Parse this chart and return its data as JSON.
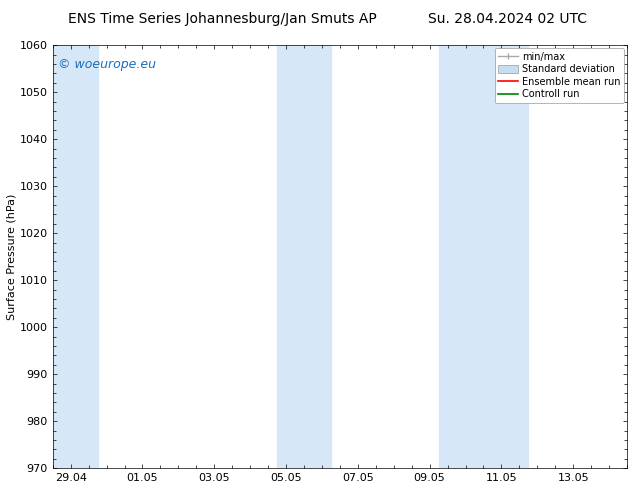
{
  "title_left": "ENS Time Series Johannesburg/Jan Smuts AP",
  "title_right": "Su. 28.04.2024 02 UTC",
  "ylabel": "Surface Pressure (hPa)",
  "ylim": [
    970,
    1060
  ],
  "yticks": [
    970,
    980,
    990,
    1000,
    1010,
    1020,
    1030,
    1040,
    1050,
    1060
  ],
  "background_color": "#ffffff",
  "plot_bg_color": "#ffffff",
  "shaded_color": "#d6e8f7",
  "watermark": "© woeurope.eu",
  "watermark_color": "#1a6fbd",
  "legend_entries": [
    "min/max",
    "Standard deviation",
    "Ensemble mean run",
    "Controll run"
  ],
  "legend_colors": [
    "#aaaaaa",
    "#c8ddf0",
    "#ff0000",
    "#008000"
  ],
  "xlim": [
    0,
    16
  ],
  "shaded_bands": [
    {
      "x_start": 0.0,
      "x_end": 1.25
    },
    {
      "x_start": 6.25,
      "x_end": 7.75
    },
    {
      "x_start": 10.75,
      "x_end": 13.25
    }
  ],
  "xtick_labels": [
    "29.04",
    "01.05",
    "03.05",
    "05.05",
    "07.05",
    "09.05",
    "11.05",
    "13.05"
  ],
  "xtick_positions": [
    0.5,
    2.5,
    4.5,
    6.5,
    8.5,
    10.5,
    12.5,
    14.5
  ],
  "title_fontsize": 10,
  "axis_fontsize": 8,
  "tick_fontsize": 8,
  "watermark_fontsize": 9
}
